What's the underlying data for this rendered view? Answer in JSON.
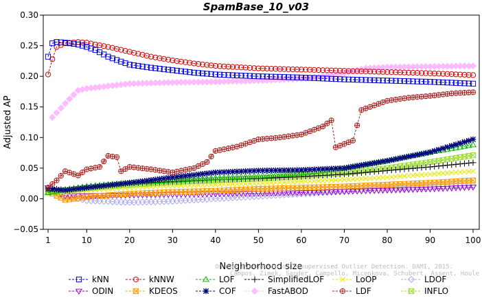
{
  "chart_data": {
    "type": "line",
    "title": "SpamBase_10_v03",
    "xlabel": "Neighborhood size",
    "ylabel": "Adjusted AP",
    "xlim": [
      1,
      100
    ],
    "ylim": [
      -0.05,
      0.3
    ],
    "xticks": [
      1,
      10,
      20,
      30,
      40,
      50,
      60,
      70,
      80,
      90,
      100
    ],
    "yticks": [
      "−0.05",
      "0.00",
      "0.05",
      "0.10",
      "0.15",
      "0.20",
      "0.25",
      "0.30"
    ],
    "ytick_values": [
      -0.05,
      0.0,
      0.05,
      0.1,
      0.15,
      0.2,
      0.25,
      0.3
    ],
    "grid": false,
    "legend_position": "bottom",
    "credit_lines": [
      "Campos, Zimek, Sander, Campello, Micenkova, Schubert, Assent, Houle",
      "On the Evaluation of Unsupervised Outlier Detection. DAMI, 2015."
    ],
    "series": [
      {
        "name": "kNN",
        "color": "#0000dd",
        "marker": "square",
        "points": [
          [
            1,
            0.232
          ],
          [
            2,
            0.254
          ],
          [
            3,
            0.256
          ],
          [
            5,
            0.255
          ],
          [
            8,
            0.252
          ],
          [
            10,
            0.248
          ],
          [
            12,
            0.243
          ],
          [
            15,
            0.232
          ],
          [
            18,
            0.224
          ],
          [
            20,
            0.219
          ],
          [
            25,
            0.214
          ],
          [
            30,
            0.21
          ],
          [
            35,
            0.206
          ],
          [
            40,
            0.203
          ],
          [
            50,
            0.2
          ],
          [
            60,
            0.198
          ],
          [
            70,
            0.195
          ],
          [
            80,
            0.193
          ],
          [
            90,
            0.191
          ],
          [
            100,
            0.188
          ]
        ]
      },
      {
        "name": "kNNW",
        "color": "#dd0000",
        "marker": "circle",
        "points": [
          [
            1,
            0.203
          ],
          [
            2,
            0.228
          ],
          [
            3,
            0.248
          ],
          [
            5,
            0.254
          ],
          [
            8,
            0.256
          ],
          [
            10,
            0.255
          ],
          [
            12,
            0.252
          ],
          [
            15,
            0.248
          ],
          [
            20,
            0.24
          ],
          [
            25,
            0.232
          ],
          [
            30,
            0.226
          ],
          [
            35,
            0.221
          ],
          [
            40,
            0.217
          ],
          [
            50,
            0.213
          ],
          [
            60,
            0.211
          ],
          [
            70,
            0.209
          ],
          [
            80,
            0.207
          ],
          [
            90,
            0.205
          ],
          [
            100,
            0.202
          ]
        ]
      },
      {
        "name": "LOF",
        "color": "#00bb00",
        "marker": "triangle-up",
        "points": [
          [
            1,
            0.01
          ],
          [
            5,
            0.015
          ],
          [
            10,
            0.02
          ],
          [
            20,
            0.026
          ],
          [
            30,
            0.03
          ],
          [
            40,
            0.034
          ],
          [
            50,
            0.037
          ],
          [
            60,
            0.042
          ],
          [
            70,
            0.05
          ],
          [
            80,
            0.062
          ],
          [
            90,
            0.076
          ],
          [
            100,
            0.088
          ]
        ]
      },
      {
        "name": "SimplifiedLOF",
        "color": "#000000",
        "marker": "plus",
        "points": [
          [
            1,
            0.018
          ],
          [
            5,
            0.014
          ],
          [
            10,
            0.018
          ],
          [
            20,
            0.025
          ],
          [
            30,
            0.028
          ],
          [
            40,
            0.031
          ],
          [
            50,
            0.033
          ],
          [
            60,
            0.036
          ],
          [
            70,
            0.04
          ],
          [
            80,
            0.046
          ],
          [
            90,
            0.052
          ],
          [
            100,
            0.059
          ]
        ]
      },
      {
        "name": "LoOP",
        "color": "#e8e800",
        "marker": "x",
        "points": [
          [
            1,
            0.012
          ],
          [
            5,
            0.01
          ],
          [
            10,
            0.014
          ],
          [
            20,
            0.018
          ],
          [
            30,
            0.021
          ],
          [
            40,
            0.023
          ],
          [
            50,
            0.025
          ],
          [
            60,
            0.028
          ],
          [
            70,
            0.031
          ],
          [
            80,
            0.035
          ],
          [
            90,
            0.04
          ],
          [
            100,
            0.045
          ]
        ]
      },
      {
        "name": "LDOF",
        "color": "#aaaaee",
        "marker": "diamond",
        "points": [
          [
            1,
            0.015
          ],
          [
            5,
            0.005
          ],
          [
            10,
            -0.003
          ],
          [
            20,
            -0.006
          ],
          [
            30,
            -0.004
          ],
          [
            40,
            0.0
          ],
          [
            50,
            0.004
          ],
          [
            60,
            0.008
          ],
          [
            70,
            0.012
          ],
          [
            80,
            0.016
          ],
          [
            90,
            0.019
          ],
          [
            100,
            0.022
          ]
        ]
      },
      {
        "name": "ODIN",
        "color": "#9900cc",
        "marker": "triangle-down",
        "points": [
          [
            1,
            0.018
          ],
          [
            5,
            0.005
          ],
          [
            10,
            0.005
          ],
          [
            20,
            0.006
          ],
          [
            30,
            0.007
          ],
          [
            40,
            0.008
          ],
          [
            50,
            0.009
          ],
          [
            60,
            0.01
          ],
          [
            70,
            0.012
          ],
          [
            80,
            0.014
          ],
          [
            90,
            0.016
          ],
          [
            100,
            0.019
          ]
        ]
      },
      {
        "name": "KDEOS",
        "color": "#ff9900",
        "marker": "square-x",
        "points": [
          [
            1,
            0.012
          ],
          [
            5,
            -0.002
          ],
          [
            10,
            0.003
          ],
          [
            20,
            0.008
          ],
          [
            30,
            0.011
          ],
          [
            40,
            0.013
          ],
          [
            50,
            0.016
          ],
          [
            60,
            0.018
          ],
          [
            70,
            0.02
          ],
          [
            80,
            0.023
          ],
          [
            90,
            0.026
          ],
          [
            100,
            0.03
          ]
        ]
      },
      {
        "name": "COF",
        "color": "#000080",
        "marker": "asterisk",
        "points": [
          [
            1,
            0.016
          ],
          [
            5,
            0.014
          ],
          [
            10,
            0.018
          ],
          [
            20,
            0.026
          ],
          [
            30,
            0.035
          ],
          [
            40,
            0.043
          ],
          [
            50,
            0.046
          ],
          [
            60,
            0.047
          ],
          [
            70,
            0.05
          ],
          [
            80,
            0.062
          ],
          [
            90,
            0.076
          ],
          [
            100,
            0.097
          ]
        ]
      },
      {
        "name": "FastABOD",
        "color": "#ffbbff",
        "marker": "diamond-filled",
        "points": [
          [
            2,
            0.133
          ],
          [
            4,
            0.148
          ],
          [
            6,
            0.163
          ],
          [
            8,
            0.177
          ],
          [
            10,
            0.18
          ],
          [
            15,
            0.184
          ],
          [
            20,
            0.188
          ],
          [
            30,
            0.19
          ],
          [
            40,
            0.191
          ],
          [
            50,
            0.193
          ],
          [
            60,
            0.196
          ],
          [
            70,
            0.205
          ],
          [
            75,
            0.213
          ],
          [
            80,
            0.215
          ],
          [
            90,
            0.216
          ],
          [
            100,
            0.217
          ]
        ]
      },
      {
        "name": "LDF",
        "color": "#aa2222",
        "marker": "circle-plus",
        "points": [
          [
            1,
            0.018
          ],
          [
            3,
            0.03
          ],
          [
            5,
            0.045
          ],
          [
            8,
            0.038
          ],
          [
            10,
            0.048
          ],
          [
            13,
            0.052
          ],
          [
            15,
            0.07
          ],
          [
            17,
            0.068
          ],
          [
            18,
            0.045
          ],
          [
            20,
            0.052
          ],
          [
            25,
            0.048
          ],
          [
            30,
            0.043
          ],
          [
            35,
            0.05
          ],
          [
            38,
            0.06
          ],
          [
            40,
            0.078
          ],
          [
            45,
            0.085
          ],
          [
            50,
            0.097
          ],
          [
            55,
            0.1
          ],
          [
            60,
            0.105
          ],
          [
            65,
            0.118
          ],
          [
            67,
            0.128
          ],
          [
            68,
            0.084
          ],
          [
            72,
            0.095
          ],
          [
            74,
            0.145
          ],
          [
            78,
            0.155
          ],
          [
            80,
            0.16
          ],
          [
            85,
            0.165
          ],
          [
            90,
            0.168
          ],
          [
            95,
            0.172
          ],
          [
            100,
            0.174
          ]
        ]
      },
      {
        "name": "INFLO",
        "color": "#99dd33",
        "marker": "square-x",
        "points": [
          [
            1,
            0.01
          ],
          [
            5,
            0.013
          ],
          [
            10,
            0.017
          ],
          [
            20,
            0.023
          ],
          [
            30,
            0.027
          ],
          [
            40,
            0.03
          ],
          [
            50,
            0.033
          ],
          [
            60,
            0.037
          ],
          [
            70,
            0.042
          ],
          [
            80,
            0.05
          ],
          [
            90,
            0.06
          ],
          [
            100,
            0.071
          ]
        ]
      }
    ]
  }
}
